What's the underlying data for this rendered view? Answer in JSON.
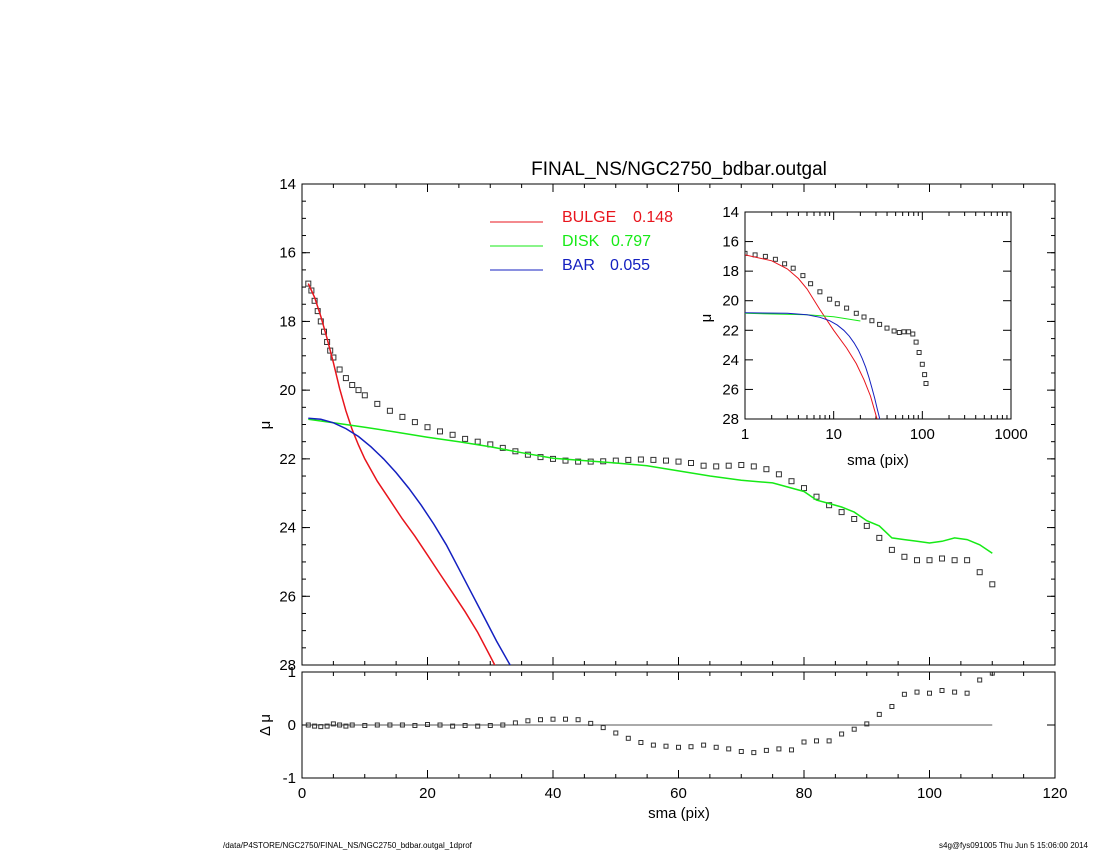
{
  "colors": {
    "bulge": "#e8141c",
    "disk": "#16ea16",
    "bar": "#1420c0",
    "data": "#333333",
    "axis": "#000000"
  },
  "footer": {
    "left": "/data/P4STORE/NGC2750/FINAL_NS/NGC2750_bdbar.outgal_1dprof",
    "right": "s4g@fys091005  Thu Jun  5 15:06:00 2014"
  },
  "chart_data": [
    {
      "id": "main",
      "type": "scatter",
      "title": "FINAL_NS/NGC2750_bdbar.outgal",
      "xlabel": "",
      "ylabel": "μ",
      "xlim": [
        0,
        120
      ],
      "ylim": [
        28,
        14
      ],
      "yticks": [
        14,
        16,
        18,
        20,
        22,
        24,
        26,
        28
      ],
      "legend": {
        "placement": "top-center",
        "entries": [
          {
            "name": "BULGE",
            "value": "0.148",
            "color": "#e8141c"
          },
          {
            "name": "DISK",
            "value": "0.797",
            "color": "#16ea16"
          },
          {
            "name": "BAR",
            "value": "0.055",
            "color": "#1420c0"
          }
        ]
      },
      "series": [
        {
          "name": "data",
          "kind": "points",
          "x": [
            1,
            1.5,
            2,
            2.5,
            3,
            3.5,
            4,
            4.5,
            5,
            6,
            7,
            8,
            9,
            10,
            12,
            14,
            16,
            18,
            20,
            22,
            24,
            26,
            28,
            30,
            32,
            34,
            36,
            38,
            40,
            42,
            44,
            46,
            48,
            50,
            52,
            54,
            56,
            58,
            60,
            62,
            64,
            66,
            68,
            70,
            72,
            74,
            76,
            78,
            80,
            82,
            84,
            86,
            88,
            90,
            92,
            94,
            96,
            98,
            100,
            102,
            104,
            106,
            108,
            110
          ],
          "y": [
            16.9,
            17.1,
            17.4,
            17.7,
            18.0,
            18.3,
            18.6,
            18.85,
            19.05,
            19.4,
            19.65,
            19.85,
            20.0,
            20.15,
            20.4,
            20.6,
            20.78,
            20.93,
            21.08,
            21.2,
            21.3,
            21.42,
            21.5,
            21.58,
            21.68,
            21.78,
            21.88,
            21.95,
            22.0,
            22.05,
            22.08,
            22.08,
            22.07,
            22.05,
            22.03,
            22.02,
            22.03,
            22.05,
            22.08,
            22.12,
            22.2,
            22.22,
            22.2,
            22.18,
            22.22,
            22.3,
            22.45,
            22.65,
            22.85,
            23.1,
            23.35,
            23.55,
            23.75,
            23.95,
            24.3,
            24.65,
            24.85,
            24.95,
            24.95,
            24.9,
            24.95,
            24.95,
            25.3,
            25.65
          ]
        },
        {
          "name": "BULGE",
          "kind": "line",
          "x": [
            1,
            2,
            3,
            4,
            5,
            6,
            7,
            8,
            9,
            10,
            12,
            14,
            16,
            18,
            20,
            22,
            24,
            26,
            28,
            30,
            31
          ],
          "y": [
            16.9,
            17.3,
            17.85,
            18.5,
            19.2,
            19.95,
            20.6,
            21.15,
            21.6,
            22.0,
            22.65,
            23.2,
            23.75,
            24.25,
            24.8,
            25.35,
            25.9,
            26.45,
            27.05,
            27.75,
            28.1
          ]
        },
        {
          "name": "DISK",
          "kind": "line",
          "x": [
            1,
            5,
            10,
            15,
            20,
            25,
            30,
            35,
            40,
            45,
            50,
            55,
            60,
            65,
            70,
            75,
            80,
            82,
            84,
            86,
            88,
            90,
            92,
            94,
            96,
            98,
            100,
            102,
            104,
            106,
            108,
            110
          ],
          "y": [
            20.85,
            20.95,
            21.08,
            21.22,
            21.37,
            21.5,
            21.65,
            21.82,
            21.98,
            22.05,
            22.12,
            22.2,
            22.35,
            22.5,
            22.62,
            22.7,
            22.95,
            23.2,
            23.3,
            23.4,
            23.55,
            23.8,
            23.95,
            24.3,
            24.35,
            24.4,
            24.45,
            24.4,
            24.3,
            24.35,
            24.5,
            24.75
          ]
        },
        {
          "name": "BAR",
          "kind": "line",
          "x": [
            1,
            3,
            5,
            7,
            9,
            11,
            13,
            15,
            17,
            19,
            21,
            23,
            25,
            27,
            29,
            31,
            33,
            34.5
          ],
          "y": [
            20.82,
            20.85,
            20.95,
            21.12,
            21.35,
            21.65,
            22.0,
            22.4,
            22.85,
            23.35,
            23.9,
            24.5,
            25.2,
            25.9,
            26.6,
            27.3,
            27.95,
            28.4
          ]
        }
      ]
    },
    {
      "id": "residuals",
      "type": "scatter",
      "xlabel": "sma (pix)",
      "ylabel": "Δ μ",
      "xlim": [
        0,
        120
      ],
      "ylim": [
        -1,
        1
      ],
      "xticks": [
        0,
        20,
        40,
        60,
        80,
        100,
        120
      ],
      "yticks": [
        -1,
        0,
        1
      ],
      "series": [
        {
          "name": "residual",
          "kind": "points",
          "x": [
            1,
            2,
            3,
            4,
            5,
            6,
            7,
            8,
            10,
            12,
            14,
            16,
            18,
            20,
            22,
            24,
            26,
            28,
            30,
            32,
            34,
            36,
            38,
            40,
            42,
            44,
            46,
            48,
            50,
            52,
            54,
            56,
            58,
            60,
            62,
            64,
            66,
            68,
            70,
            72,
            74,
            76,
            78,
            80,
            82,
            84,
            86,
            88,
            90,
            92,
            94,
            96,
            98,
            100,
            102,
            104,
            106,
            108,
            110
          ],
          "y": [
            0.0,
            -0.02,
            -0.03,
            -0.02,
            0.02,
            0.0,
            -0.02,
            0.0,
            -0.01,
            0.0,
            0.0,
            0.0,
            -0.01,
            0.01,
            0.0,
            -0.02,
            -0.01,
            -0.02,
            -0.01,
            0.0,
            0.04,
            0.08,
            0.1,
            0.11,
            0.11,
            0.1,
            0.03,
            -0.05,
            -0.15,
            -0.25,
            -0.33,
            -0.38,
            -0.4,
            -0.42,
            -0.41,
            -0.38,
            -0.42,
            -0.45,
            -0.5,
            -0.52,
            -0.48,
            -0.45,
            -0.47,
            -0.32,
            -0.3,
            -0.3,
            -0.17,
            -0.08,
            0.02,
            0.2,
            0.35,
            0.58,
            0.62,
            0.6,
            0.65,
            0.62,
            0.6,
            0.85,
            0.98
          ]
        }
      ]
    },
    {
      "id": "inset",
      "type": "scatter",
      "xlabel": "sma (pix)",
      "ylabel": "μ",
      "xscale": "log",
      "xlim": [
        1,
        1000
      ],
      "ylim": [
        28,
        14
      ],
      "xticks": [
        1,
        10,
        100,
        1000
      ],
      "yticks": [
        14,
        16,
        18,
        20,
        22,
        24,
        26,
        28
      ],
      "series": [
        {
          "name": "data",
          "kind": "points",
          "x": [
            1,
            1.3,
            1.7,
            2.2,
            2.8,
            3.5,
            4.5,
            5.5,
            7,
            9,
            11,
            14,
            18,
            22,
            27,
            33,
            40,
            48,
            55,
            62,
            70,
            78,
            85,
            92,
            100,
            106,
            110
          ],
          "y": [
            16.8,
            16.9,
            17.0,
            17.2,
            17.5,
            17.8,
            18.3,
            18.85,
            19.4,
            19.9,
            20.2,
            20.5,
            20.85,
            21.1,
            21.35,
            21.6,
            21.85,
            22.05,
            22.15,
            22.1,
            22.1,
            22.25,
            22.8,
            23.5,
            24.3,
            25.0,
            25.6
          ]
        },
        {
          "name": "BULGE",
          "kind": "line",
          "x": [
            1,
            2,
            3,
            4,
            5,
            7,
            10,
            14,
            18,
            22,
            26,
            30,
            33
          ],
          "y": [
            16.9,
            17.3,
            17.85,
            18.5,
            19.2,
            20.6,
            22.0,
            23.2,
            24.25,
            25.35,
            26.45,
            27.75,
            28.6
          ]
        },
        {
          "name": "DISK",
          "kind": "line",
          "x": [
            1,
            5,
            10,
            20
          ],
          "y": [
            20.85,
            20.95,
            21.08,
            21.37
          ]
        },
        {
          "name": "BAR",
          "kind": "line",
          "x": [
            1,
            3,
            5,
            7,
            9,
            11,
            13,
            15,
            17,
            19,
            21,
            23,
            25,
            27,
            29,
            31,
            33,
            35
          ],
          "y": [
            20.82,
            20.85,
            20.95,
            21.12,
            21.35,
            21.65,
            22.0,
            22.4,
            22.85,
            23.35,
            23.9,
            24.5,
            25.2,
            25.9,
            26.6,
            27.3,
            27.95,
            28.5
          ]
        }
      ]
    }
  ]
}
